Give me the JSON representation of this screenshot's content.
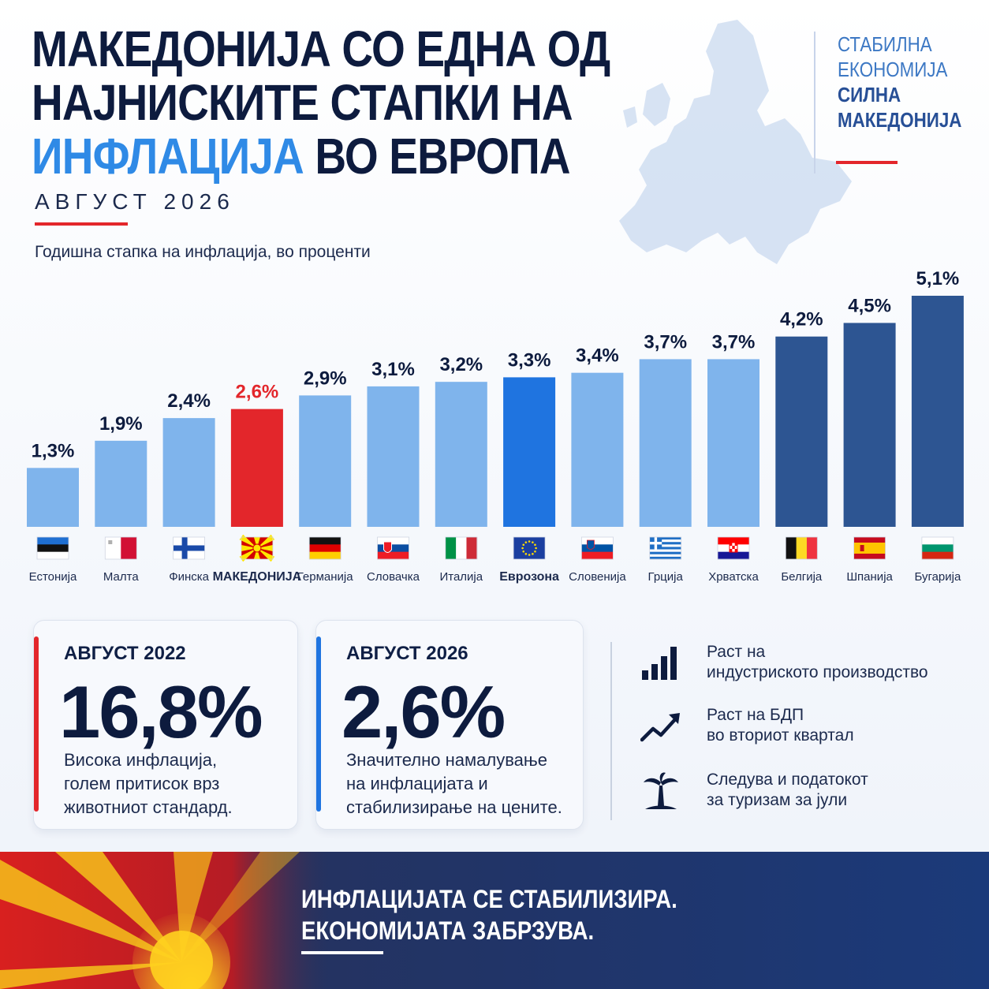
{
  "title": {
    "line1": "МАКЕДОНИЈА СО ЕДНА ОД",
    "line2": "НАЈНИСКИТЕ СТАПКИ НА",
    "line3_highlight": "ИНФЛАЦИЈА",
    "line3_rest": "ВО ЕВРОПА"
  },
  "date": "АВГУСТ 2026",
  "subtitle": "Годишна стапка на инфлација, во проценти",
  "brand": {
    "line1": "СТАБИЛНА",
    "line2": "ЕКОНОМИЈА",
    "line3": "СИЛНА",
    "line4": "МАКЕДОНИЈА"
  },
  "colors": {
    "navy": "#0d1b3e",
    "accent_blue": "#2f8ae6",
    "red": "#e3262b",
    "bar_light": "#7fb4ec",
    "bar_eurozone": "#1f74e0",
    "bar_dark": "#2d5592"
  },
  "chart_data": {
    "type": "bar",
    "ylabel": "Годишна стапка на инфлација, во проценти",
    "ylim": [
      0,
      5.1
    ],
    "unit": "%",
    "categories": [
      "Естонија",
      "Малта",
      "Финска",
      "МАКЕДОНИЈА",
      "Германија",
      "Словачка",
      "Италија",
      "Еврозона",
      "Словенија",
      "Грција",
      "Хрватска",
      "Белгија",
      "Шпанија",
      "Бугарија"
    ],
    "values": [
      1.3,
      1.9,
      2.4,
      2.6,
      2.9,
      3.1,
      3.2,
      3.3,
      3.4,
      3.7,
      3.7,
      4.2,
      4.5,
      5.1
    ],
    "value_labels": [
      "1,3%",
      "1,9%",
      "2,4%",
      "2,6%",
      "2,9%",
      "3,1%",
      "3,2%",
      "3,3%",
      "3,4%",
      "3,7%",
      "3,7%",
      "4,2%",
      "4,5%",
      "5,1%"
    ],
    "highlight": {
      "МАКЕДОНИЈА": "#e3262b",
      "Еврозона": "#1f74e0"
    },
    "dark_bars": [
      "Белгија",
      "Шпанија",
      "Бугарија"
    ],
    "flags": [
      "estonia-flag",
      "malta-flag",
      "finland-flag",
      "macedonia-flag",
      "germany-flag",
      "slovakia-flag",
      "italy-flag",
      "eu-flag",
      "slovenia-flag",
      "greece-flag",
      "croatia-flag",
      "belgium-flag",
      "spain-flag",
      "bulgaria-flag"
    ],
    "grid": false,
    "legend": "none"
  },
  "cards": [
    {
      "label": "АВГУСТ 2022",
      "value": "16,8%",
      "desc1": "Висока инфлација,",
      "desc2": "голем притисок врз",
      "desc3": "животниот стандард."
    },
    {
      "label": "АВГУСТ 2026",
      "value": "2,6%",
      "desc1": "Значително намалување",
      "desc2": "на инфлацијата и",
      "desc3": "стабилизирање на цените."
    }
  ],
  "bullets": [
    {
      "icon": "bar-chart-icon",
      "line1": "Раст на",
      "line2": "индустриското производство"
    },
    {
      "icon": "trend-up-icon",
      "line1": "Раст на БДП",
      "line2": "во вториот квартал"
    },
    {
      "icon": "palm-tree-icon",
      "line1": "Следува и податокот",
      "line2": "за туризам за јули"
    }
  ],
  "footer": {
    "line1": "ИНФЛАЦИЈАТА СЕ СТАБИЛИЗИРА.",
    "line2": "ЕКОНОМИЈАТА ЗАБРЗУВА."
  }
}
